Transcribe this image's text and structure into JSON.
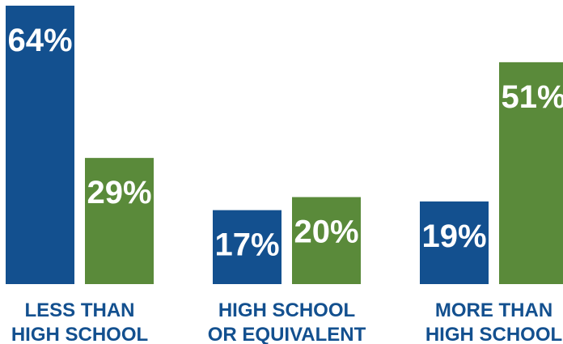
{
  "colors": {
    "series_1": "#13508F",
    "series_2": "#5A8A3A",
    "category_text": "#13508F",
    "bar_text": "#FFFFFF"
  },
  "chart_data": {
    "type": "bar",
    "title": "",
    "xlabel": "",
    "ylabel": "",
    "ylim": [
      0,
      64
    ],
    "grid": false,
    "legend": "none",
    "categories": [
      [
        "LESS THAN",
        "HIGH SCHOOL"
      ],
      [
        "HIGH SCHOOL",
        "OR EQUIVALENT"
      ],
      [
        "MORE THAN",
        "HIGH SCHOOL"
      ]
    ],
    "series": [
      {
        "values": [
          64,
          17,
          19
        ],
        "labels": [
          "64%",
          "17%",
          "19%"
        ]
      },
      {
        "values": [
          29,
          20,
          51
        ],
        "labels": [
          "29%",
          "20%",
          "51%"
        ]
      }
    ]
  }
}
